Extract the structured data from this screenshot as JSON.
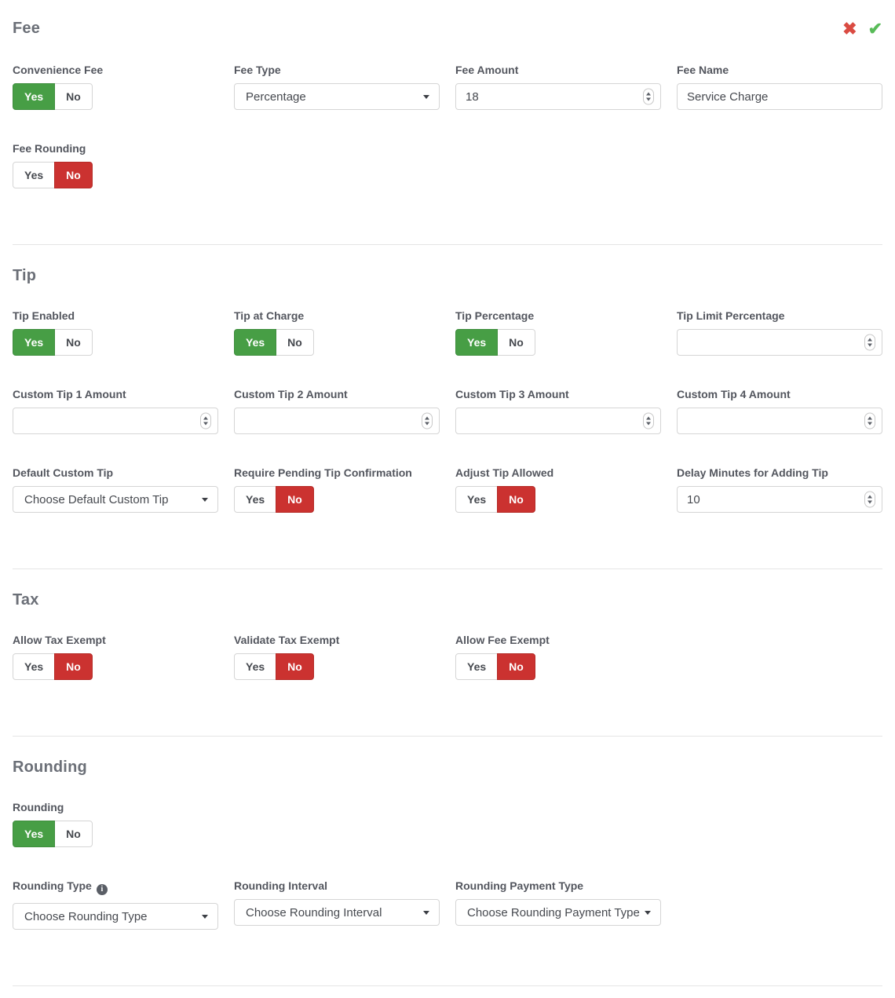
{
  "toggle": {
    "yes": "Yes",
    "no": "No"
  },
  "icons": {
    "cancel": "✖",
    "confirm": "✔",
    "info": "i"
  },
  "colors": {
    "toggle_yes_active": "#479e45",
    "toggle_no_active": "#cb3230",
    "cancel_icon": "#da4b42",
    "confirm_icon": "#58bb58"
  },
  "sections": {
    "fee": {
      "title": "Fee",
      "convenience_fee": {
        "label": "Convenience Fee",
        "value": "Yes"
      },
      "fee_type": {
        "label": "Fee Type",
        "value": "Percentage"
      },
      "fee_amount": {
        "label": "Fee Amount",
        "value": "18"
      },
      "fee_name": {
        "label": "Fee Name",
        "value": "Service Charge"
      },
      "fee_rounding": {
        "label": "Fee Rounding",
        "value": "No"
      }
    },
    "tip": {
      "title": "Tip",
      "tip_enabled": {
        "label": "Tip Enabled",
        "value": "Yes"
      },
      "tip_at_charge": {
        "label": "Tip at Charge",
        "value": "Yes"
      },
      "tip_percentage": {
        "label": "Tip Percentage",
        "value": "Yes"
      },
      "tip_limit_percentage": {
        "label": "Tip Limit Percentage",
        "value": ""
      },
      "custom_tip_1": {
        "label": "Custom Tip 1 Amount",
        "value": ""
      },
      "custom_tip_2": {
        "label": "Custom Tip 2 Amount",
        "value": ""
      },
      "custom_tip_3": {
        "label": "Custom Tip 3 Amount",
        "value": ""
      },
      "custom_tip_4": {
        "label": "Custom Tip 4 Amount",
        "value": ""
      },
      "default_custom_tip": {
        "label": "Default Custom Tip",
        "value": "Choose Default Custom Tip"
      },
      "require_pending_tip_confirmation": {
        "label": "Require Pending Tip Confirmation",
        "value": "No"
      },
      "adjust_tip_allowed": {
        "label": "Adjust Tip Allowed",
        "value": "No"
      },
      "delay_minutes": {
        "label": "Delay Minutes for Adding Tip",
        "value": "10"
      }
    },
    "tax": {
      "title": "Tax",
      "allow_tax_exempt": {
        "label": "Allow Tax Exempt",
        "value": "No"
      },
      "validate_tax_exempt": {
        "label": "Validate Tax Exempt",
        "value": "No"
      },
      "allow_fee_exempt": {
        "label": "Allow Fee Exempt",
        "value": "No"
      }
    },
    "rounding": {
      "title": "Rounding",
      "rounding": {
        "label": "Rounding",
        "value": "Yes"
      },
      "rounding_type": {
        "label": "Rounding Type",
        "value": "Choose Rounding Type"
      },
      "rounding_interval": {
        "label": "Rounding Interval",
        "value": "Choose Rounding Interval"
      },
      "rounding_payment_type": {
        "label": "Rounding Payment Type",
        "value": "Choose Rounding Payment Type"
      }
    }
  }
}
